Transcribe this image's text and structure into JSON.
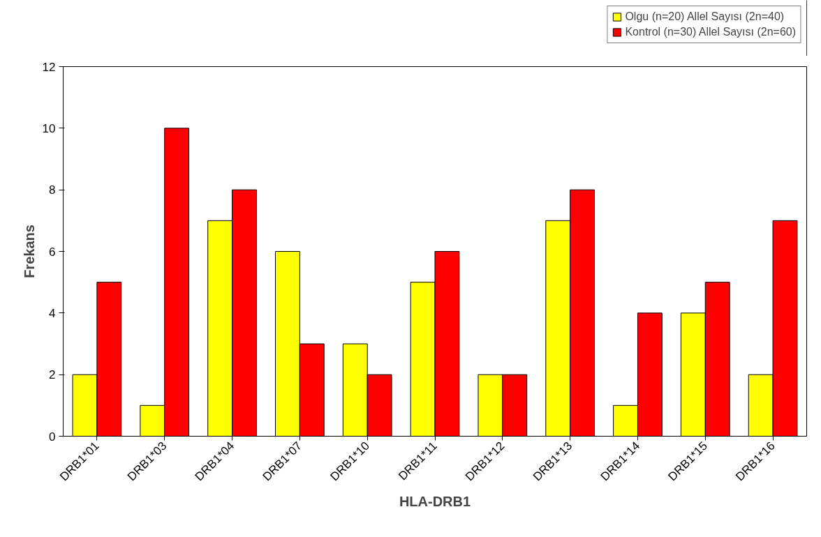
{
  "chart_data": {
    "type": "bar",
    "xlabel": "HLA-DRB1",
    "ylabel": "Frekans",
    "categories": [
      "DRB1*01",
      "DRB1*03",
      "DRB1*04",
      "DRB1*07",
      "DRB1*10",
      "DRB1*11",
      "DRB1*12",
      "DRB1*13",
      "DRB1*14",
      "DRB1*15",
      "DRB1*16"
    ],
    "series": [
      {
        "name": "Olgu (n=20) Allel Sayısı (2n=40)",
        "color": "#ffff00",
        "values": [
          2,
          1,
          7,
          6,
          3,
          5,
          2,
          7,
          1,
          4,
          2
        ]
      },
      {
        "name": "Kontrol (n=30) Allel Sayısı (2n=60)",
        "color": "#ff0000",
        "values": [
          5,
          10,
          8,
          3,
          2,
          6,
          2,
          8,
          4,
          5,
          7
        ]
      }
    ],
    "ylim": [
      0,
      12
    ],
    "yticks": [
      0,
      2,
      4,
      6,
      8,
      10,
      12
    ],
    "grid": false,
    "legend": "top right"
  }
}
